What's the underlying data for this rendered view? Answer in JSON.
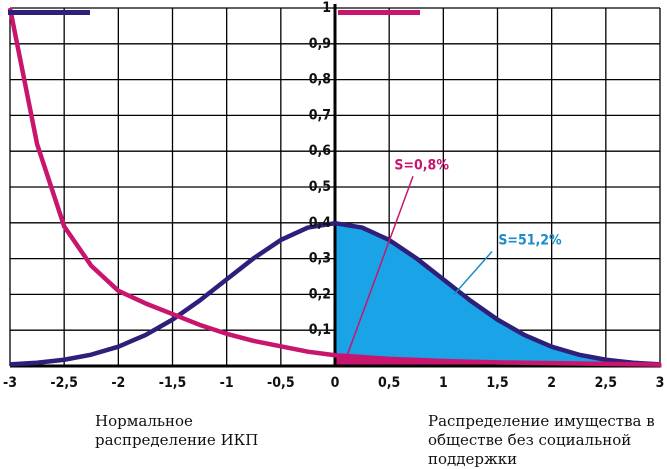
{
  "chart_data": {
    "type": "line",
    "x": [
      -3,
      -2.75,
      -2.5,
      -2.25,
      -2,
      -1.75,
      -1.5,
      -1.25,
      -1,
      -0.75,
      -0.5,
      -0.25,
      0,
      0.25,
      0.5,
      0.75,
      1,
      1.25,
      1.5,
      1.75,
      2,
      2.25,
      2.5,
      2.75,
      3
    ],
    "series": [
      {
        "name": "Нормальное распределение ИКП",
        "color": "#2e1f7a",
        "values": [
          0.0044,
          0.0091,
          0.0175,
          0.0317,
          0.054,
          0.0863,
          0.1295,
          0.1826,
          0.242,
          0.3011,
          0.3521,
          0.3867,
          0.3989,
          0.3867,
          0.3521,
          0.3011,
          0.242,
          0.1826,
          0.1295,
          0.0863,
          0.054,
          0.0317,
          0.0175,
          0.0091,
          0.0044
        ]
      },
      {
        "name": "Распределение имущества в обществе без социальной поддержки",
        "color": "#c8166f",
        "values": [
          1.0,
          0.62,
          0.39,
          0.28,
          0.21,
          0.175,
          0.145,
          0.115,
          0.09,
          0.07,
          0.055,
          0.04,
          0.03,
          0.025,
          0.02,
          0.017,
          0.014,
          0.012,
          0.01,
          0.009,
          0.008,
          0.007,
          0.006,
          0.005,
          0.004
        ]
      }
    ],
    "fills": [
      "#1aa3e6",
      "#c8166f"
    ],
    "xlim": [
      -3,
      3
    ],
    "ylim": [
      0,
      1
    ],
    "xticks": [
      -3,
      {
        "value": -2.5,
        "label": "-2,5"
      },
      -2,
      {
        "value": -1.5,
        "label": "-1,5"
      },
      -1,
      {
        "value": -0.5,
        "label": "-0,5"
      },
      0,
      {
        "value": 0.5,
        "label": "0,5"
      },
      1,
      {
        "value": 1.5,
        "label": "1,5"
      },
      2,
      {
        "value": 2.5,
        "label": "2,5"
      },
      3
    ],
    "yticks": [
      {
        "value": 0.1,
        "label": "0,1"
      },
      {
        "value": 0.2,
        "label": "0,2"
      },
      {
        "value": 0.3,
        "label": "0,3"
      },
      {
        "value": 0.4,
        "label": "0,4"
      },
      {
        "value": 0.5,
        "label": "0,5"
      },
      {
        "value": 0.6,
        "label": "0,6"
      },
      {
        "value": 0.7,
        "label": "0,7"
      },
      {
        "value": 0.8,
        "label": "0,8"
      },
      {
        "value": 0.9,
        "label": "0,9"
      },
      1
    ],
    "grid": true,
    "annotations": [
      {
        "text": "S=0,8%",
        "color": "#c8166f"
      },
      {
        "text": "S=51,2%",
        "color": "#1a8cc8"
      }
    ]
  }
}
